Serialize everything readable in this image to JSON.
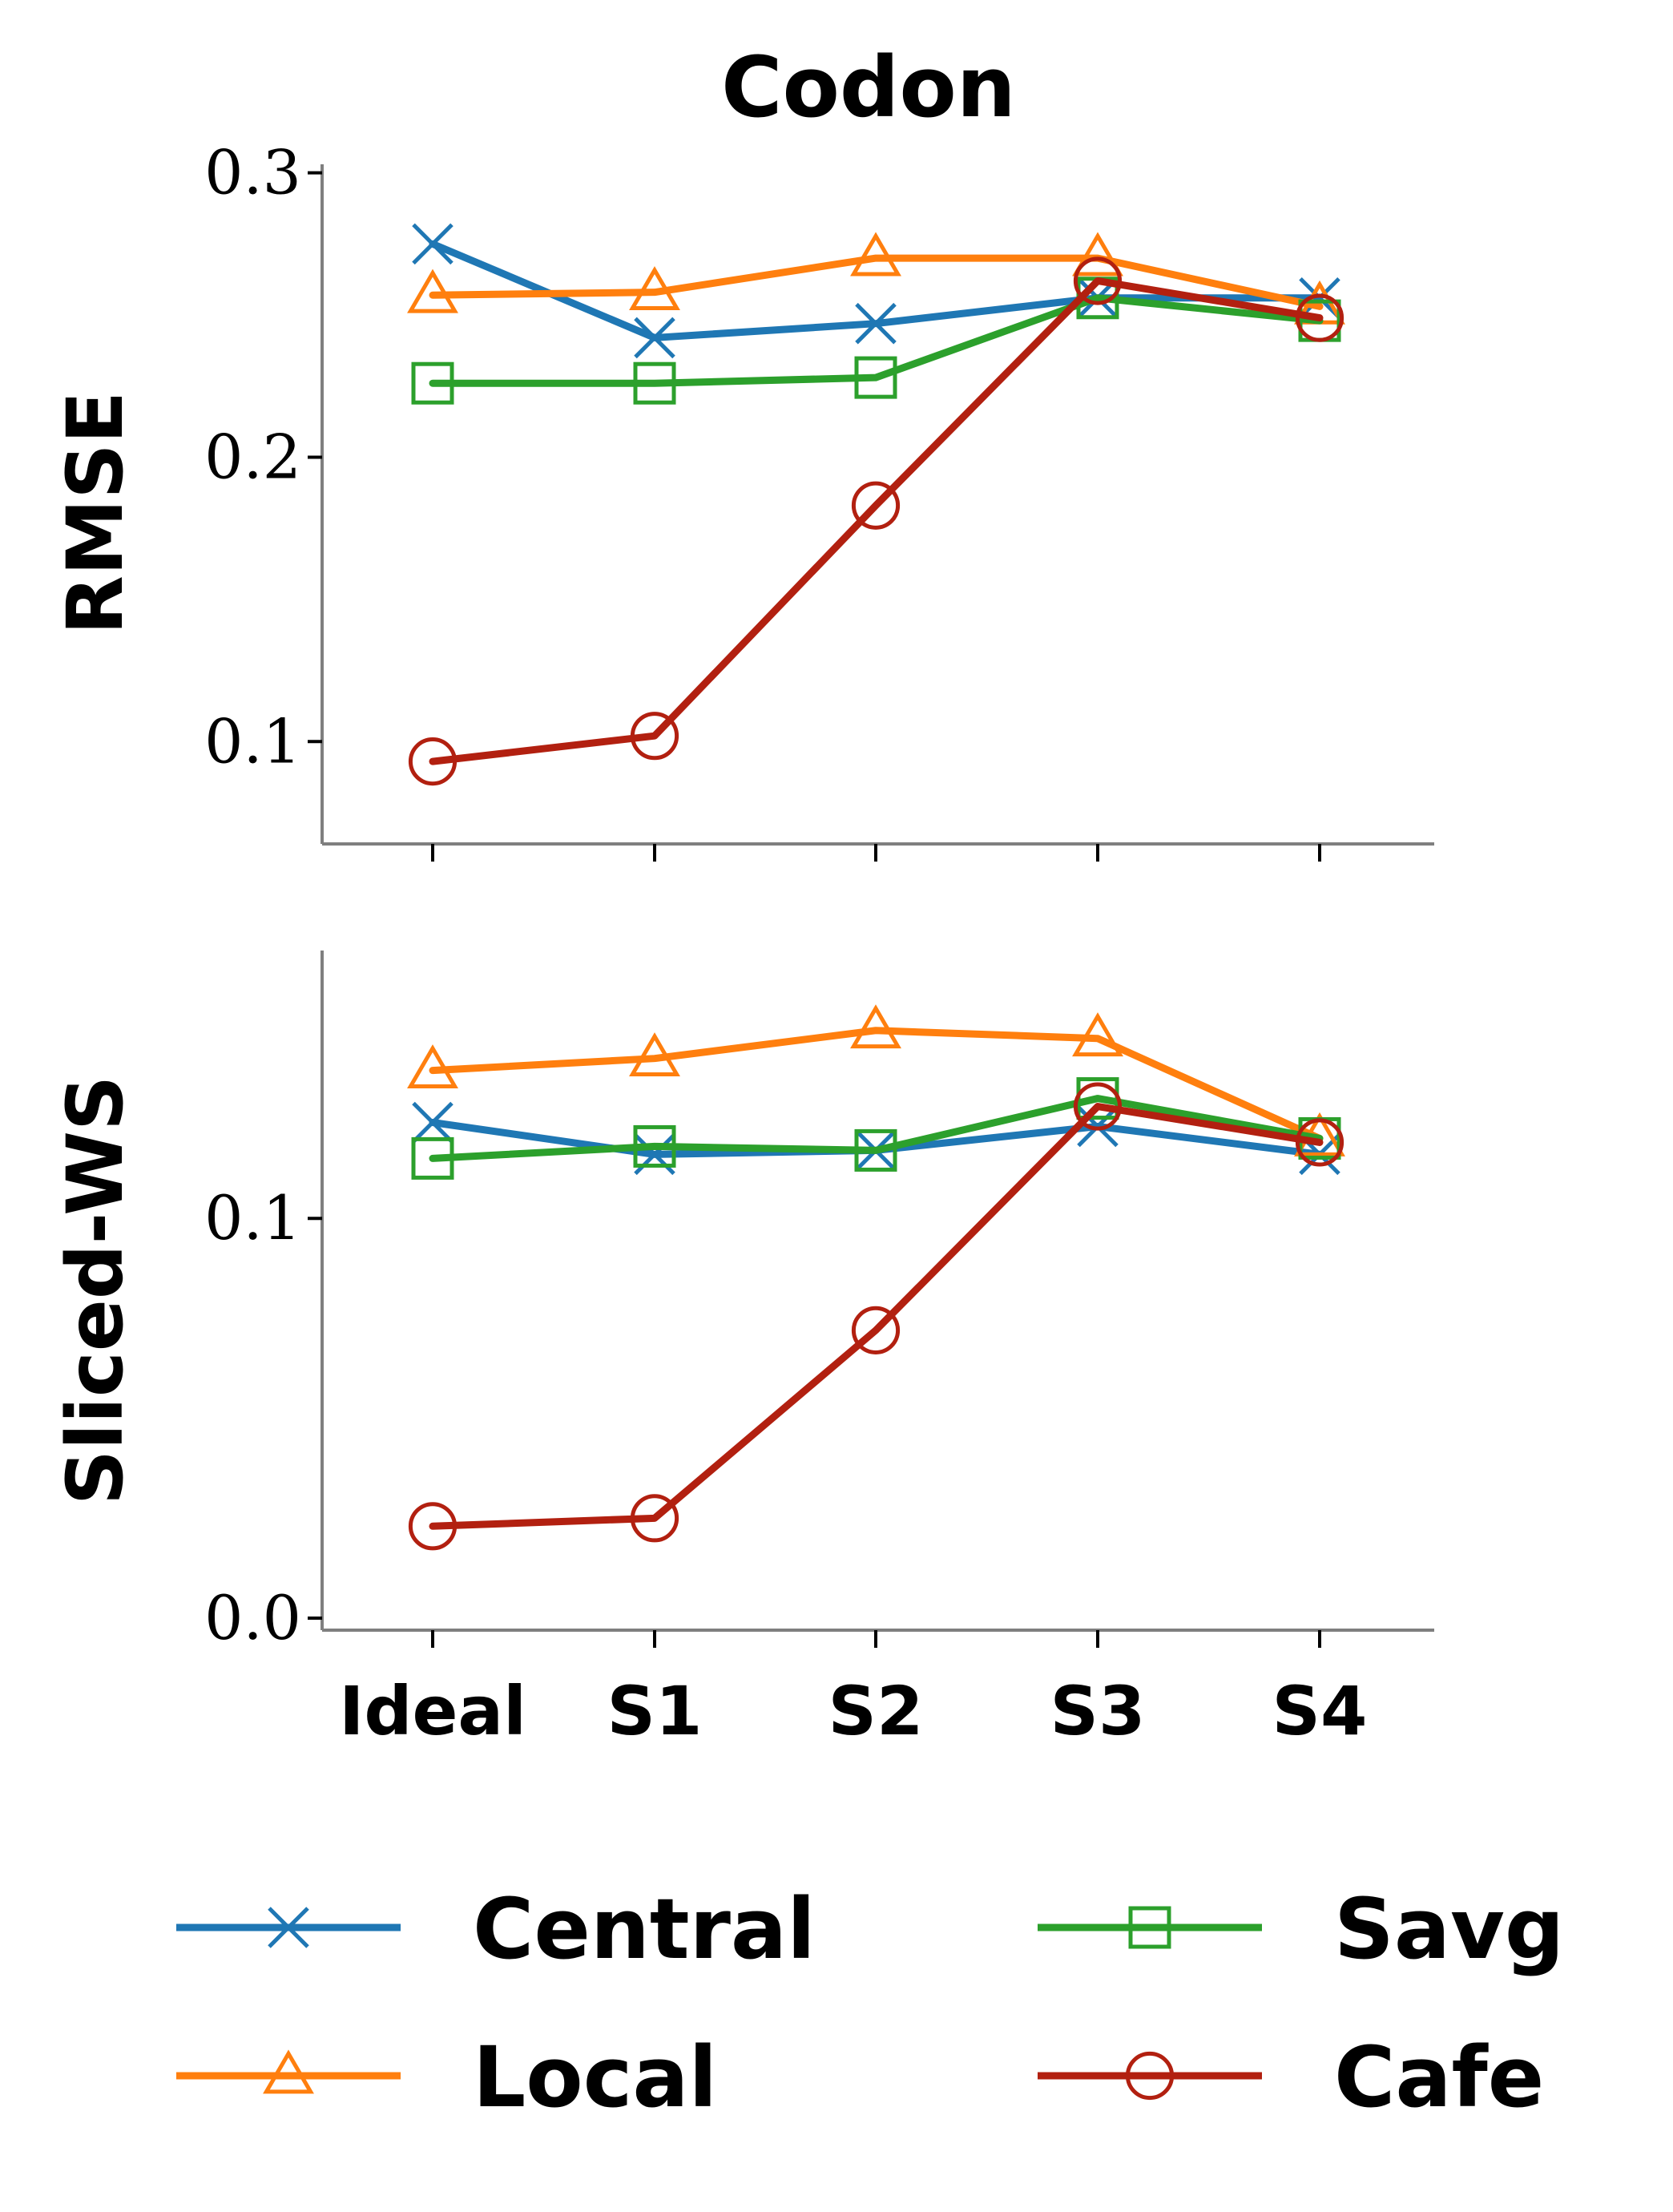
{
  "chart_data": {
    "type": "line",
    "title": "Codon",
    "categories": [
      "Ideal",
      "S1",
      "S2",
      "S3",
      "S4"
    ],
    "colors": {
      "Central": "#1f77b4",
      "Local": "#ff7f0e",
      "Savg": "#2ca02c",
      "Cafe": "#b22010"
    },
    "markers": {
      "Central": "x",
      "Local": "triangle",
      "Savg": "square",
      "Cafe": "circle"
    },
    "panels": [
      {
        "ylabel": "RMSE",
        "ylim": [
          0.064,
          0.303
        ],
        "yticks": [
          0.1,
          0.2,
          0.3
        ],
        "ytick_labels": [
          "0.1",
          "0.2",
          "0.3"
        ],
        "series": [
          {
            "name": "Central",
            "values": [
              0.275,
              0.242,
              0.247,
              0.256,
              0.256
            ]
          },
          {
            "name": "Local",
            "values": [
              0.257,
              0.258,
              0.27,
              0.27,
              0.253
            ]
          },
          {
            "name": "Savg",
            "values": [
              0.226,
              0.226,
              0.228,
              0.256,
              0.248
            ]
          },
          {
            "name": "Cafe",
            "values": [
              0.093,
              0.102,
              0.183,
              0.262,
              0.249
            ]
          }
        ]
      },
      {
        "ylabel": "Sliced-WS",
        "ylim": [
          -0.003,
          0.167
        ],
        "yticks": [
          0.0,
          0.1
        ],
        "ytick_labels": [
          "0.0",
          "0.1"
        ],
        "series": [
          {
            "name": "Central",
            "values": [
              0.124,
              0.116,
              0.117,
              0.123,
              0.116
            ]
          },
          {
            "name": "Local",
            "values": [
              0.137,
              0.14,
              0.147,
              0.145,
              0.12
            ]
          },
          {
            "name": "Savg",
            "values": [
              0.115,
              0.118,
              0.117,
              0.13,
              0.12
            ]
          },
          {
            "name": "Cafe",
            "values": [
              0.023,
              0.025,
              0.072,
              0.128,
              0.119
            ]
          }
        ]
      }
    ],
    "legend": {
      "position": "bottom",
      "columns": 2,
      "entries": [
        "Central",
        "Local",
        "Savg",
        "Cafe"
      ]
    }
  }
}
